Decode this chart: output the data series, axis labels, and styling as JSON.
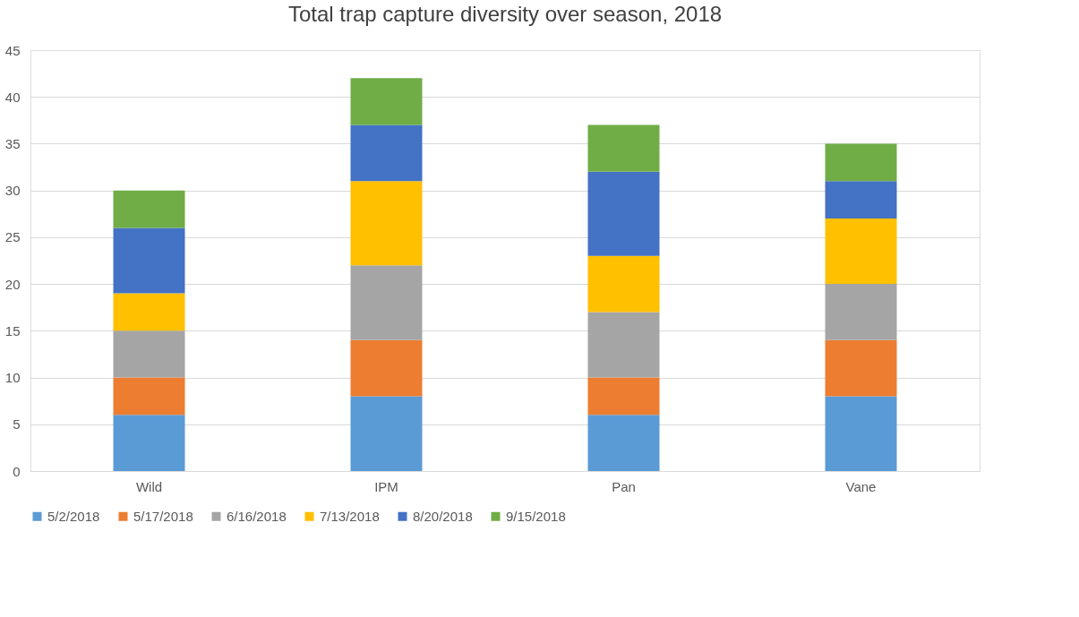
{
  "chart_data": {
    "type": "bar",
    "title": "Total trap capture diversity over season, 2018",
    "categories": [
      "Wild",
      "IPM",
      "Pan",
      "Vane"
    ],
    "stacked": true,
    "series": [
      {
        "name": "5/2/2018",
        "color": "#5b9bd5",
        "values": [
          6,
          8,
          6,
          8
        ]
      },
      {
        "name": "5/17/2018",
        "color": "#ed7d31",
        "values": [
          4,
          6,
          4,
          6
        ]
      },
      {
        "name": "6/16/2018",
        "color": "#a5a5a5",
        "values": [
          5,
          8,
          7,
          6
        ]
      },
      {
        "name": "7/13/2018",
        "color": "#ffc000",
        "values": [
          4,
          9,
          6,
          7
        ]
      },
      {
        "name": "8/20/2018",
        "color": "#4472c4",
        "values": [
          7,
          6,
          9,
          4
        ]
      },
      {
        "name": "9/15/2018",
        "color": "#70ad47",
        "values": [
          4,
          5,
          5,
          4
        ]
      }
    ],
    "ylim": [
      0,
      45
    ],
    "yticks": [
      0,
      5,
      10,
      15,
      20,
      25,
      30,
      35,
      40,
      45
    ],
    "grid": "y",
    "legend": "bottom"
  }
}
